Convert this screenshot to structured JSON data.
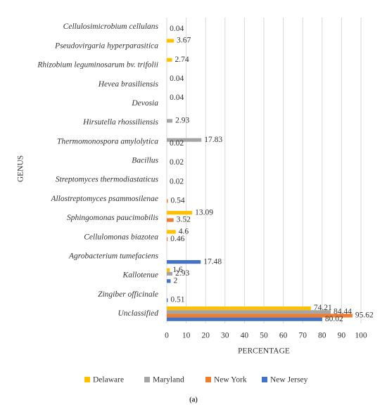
{
  "chart_data": {
    "type": "bar",
    "orientation": "horizontal",
    "x_label": "PERCENTAGE",
    "y_label": "GENUS",
    "caption": "(a)",
    "categories": [
      "Cellulosimicrobium cellulans",
      "Pseudovirgaria hyperparasitica",
      "Rhizobium leguminosarum bv. trifolii",
      "Hevea brasiliensis",
      "Devosia",
      "Hirsutella rhossiliensis",
      "Thermomonospora amylolytica",
      "Bacillus",
      "Streptomyces thermodiastaticus",
      "Allostreptomyces psammosilenae",
      "Sphingomonas paucimobilis",
      "Cellulomonas biazotea",
      "Agrobacterium tumefaciens",
      "Kallotenue",
      "Zingiber officinale",
      "Unclassified"
    ],
    "series": [
      {
        "name": "Delaware",
        "color": "#ffc000",
        "values": [
          null,
          3.67,
          2.74,
          0.04,
          0.04,
          null,
          null,
          null,
          null,
          null,
          13.09,
          4.6,
          null,
          1.6,
          null,
          74.21
        ]
      },
      {
        "name": "Maryland",
        "color": "#a5a5a5",
        "values": [
          null,
          null,
          null,
          null,
          null,
          2.93,
          17.83,
          null,
          null,
          null,
          null,
          null,
          null,
          2.93,
          null,
          84.44
        ]
      },
      {
        "name": "New York",
        "color": "#ed7d31",
        "values": [
          0.04,
          null,
          null,
          null,
          null,
          null,
          0.02,
          0.02,
          0.02,
          0.54,
          3.52,
          0.46,
          null,
          null,
          null,
          95.62
        ]
      },
      {
        "name": "New Jersey",
        "color": "#4472c4",
        "values": [
          null,
          null,
          null,
          null,
          null,
          null,
          null,
          null,
          null,
          null,
          null,
          null,
          17.48,
          2,
          0.51,
          80.02
        ]
      }
    ],
    "xlim": [
      0,
      100
    ],
    "xticks": [
      0,
      10,
      20,
      30,
      40,
      50,
      60,
      70,
      80,
      90,
      100
    ],
    "grid": true,
    "legend": "bottom"
  }
}
